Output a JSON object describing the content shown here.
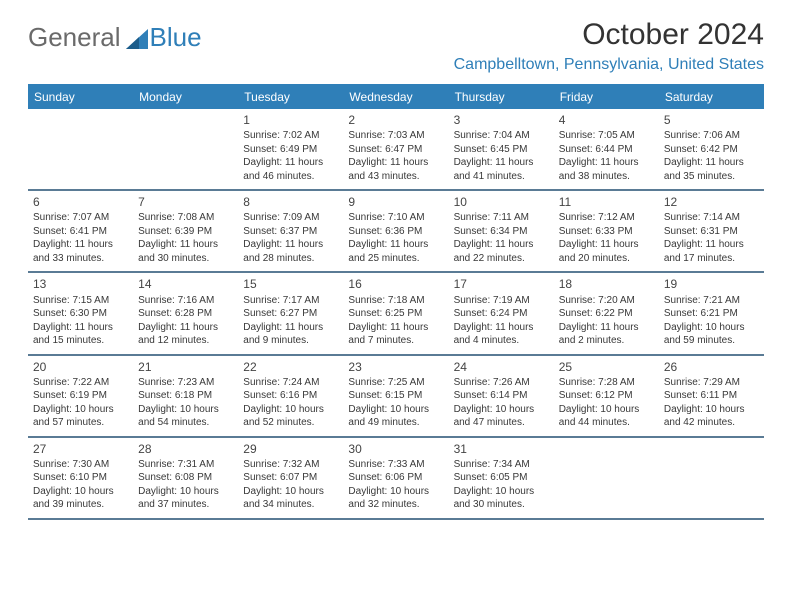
{
  "brand": {
    "part1": "General",
    "part2": "Blue"
  },
  "title": "October 2024",
  "location": "Campbelltown, Pennsylvania, United States",
  "colors": {
    "header_blue": "#2f7fb8",
    "text_dark": "#333333",
    "week_border": "#5a7b95"
  },
  "dayHeaders": [
    "Sunday",
    "Monday",
    "Tuesday",
    "Wednesday",
    "Thursday",
    "Friday",
    "Saturday"
  ],
  "weeks": [
    [
      null,
      null,
      {
        "n": "1",
        "sr": "Sunrise: 7:02 AM",
        "ss": "Sunset: 6:49 PM",
        "d1": "Daylight: 11 hours",
        "d2": "and 46 minutes."
      },
      {
        "n": "2",
        "sr": "Sunrise: 7:03 AM",
        "ss": "Sunset: 6:47 PM",
        "d1": "Daylight: 11 hours",
        "d2": "and 43 minutes."
      },
      {
        "n": "3",
        "sr": "Sunrise: 7:04 AM",
        "ss": "Sunset: 6:45 PM",
        "d1": "Daylight: 11 hours",
        "d2": "and 41 minutes."
      },
      {
        "n": "4",
        "sr": "Sunrise: 7:05 AM",
        "ss": "Sunset: 6:44 PM",
        "d1": "Daylight: 11 hours",
        "d2": "and 38 minutes."
      },
      {
        "n": "5",
        "sr": "Sunrise: 7:06 AM",
        "ss": "Sunset: 6:42 PM",
        "d1": "Daylight: 11 hours",
        "d2": "and 35 minutes."
      }
    ],
    [
      {
        "n": "6",
        "sr": "Sunrise: 7:07 AM",
        "ss": "Sunset: 6:41 PM",
        "d1": "Daylight: 11 hours",
        "d2": "and 33 minutes."
      },
      {
        "n": "7",
        "sr": "Sunrise: 7:08 AM",
        "ss": "Sunset: 6:39 PM",
        "d1": "Daylight: 11 hours",
        "d2": "and 30 minutes."
      },
      {
        "n": "8",
        "sr": "Sunrise: 7:09 AM",
        "ss": "Sunset: 6:37 PM",
        "d1": "Daylight: 11 hours",
        "d2": "and 28 minutes."
      },
      {
        "n": "9",
        "sr": "Sunrise: 7:10 AM",
        "ss": "Sunset: 6:36 PM",
        "d1": "Daylight: 11 hours",
        "d2": "and 25 minutes."
      },
      {
        "n": "10",
        "sr": "Sunrise: 7:11 AM",
        "ss": "Sunset: 6:34 PM",
        "d1": "Daylight: 11 hours",
        "d2": "and 22 minutes."
      },
      {
        "n": "11",
        "sr": "Sunrise: 7:12 AM",
        "ss": "Sunset: 6:33 PM",
        "d1": "Daylight: 11 hours",
        "d2": "and 20 minutes."
      },
      {
        "n": "12",
        "sr": "Sunrise: 7:14 AM",
        "ss": "Sunset: 6:31 PM",
        "d1": "Daylight: 11 hours",
        "d2": "and 17 minutes."
      }
    ],
    [
      {
        "n": "13",
        "sr": "Sunrise: 7:15 AM",
        "ss": "Sunset: 6:30 PM",
        "d1": "Daylight: 11 hours",
        "d2": "and 15 minutes."
      },
      {
        "n": "14",
        "sr": "Sunrise: 7:16 AM",
        "ss": "Sunset: 6:28 PM",
        "d1": "Daylight: 11 hours",
        "d2": "and 12 minutes."
      },
      {
        "n": "15",
        "sr": "Sunrise: 7:17 AM",
        "ss": "Sunset: 6:27 PM",
        "d1": "Daylight: 11 hours",
        "d2": "and 9 minutes."
      },
      {
        "n": "16",
        "sr": "Sunrise: 7:18 AM",
        "ss": "Sunset: 6:25 PM",
        "d1": "Daylight: 11 hours",
        "d2": "and 7 minutes."
      },
      {
        "n": "17",
        "sr": "Sunrise: 7:19 AM",
        "ss": "Sunset: 6:24 PM",
        "d1": "Daylight: 11 hours",
        "d2": "and 4 minutes."
      },
      {
        "n": "18",
        "sr": "Sunrise: 7:20 AM",
        "ss": "Sunset: 6:22 PM",
        "d1": "Daylight: 11 hours",
        "d2": "and 2 minutes."
      },
      {
        "n": "19",
        "sr": "Sunrise: 7:21 AM",
        "ss": "Sunset: 6:21 PM",
        "d1": "Daylight: 10 hours",
        "d2": "and 59 minutes."
      }
    ],
    [
      {
        "n": "20",
        "sr": "Sunrise: 7:22 AM",
        "ss": "Sunset: 6:19 PM",
        "d1": "Daylight: 10 hours",
        "d2": "and 57 minutes."
      },
      {
        "n": "21",
        "sr": "Sunrise: 7:23 AM",
        "ss": "Sunset: 6:18 PM",
        "d1": "Daylight: 10 hours",
        "d2": "and 54 minutes."
      },
      {
        "n": "22",
        "sr": "Sunrise: 7:24 AM",
        "ss": "Sunset: 6:16 PM",
        "d1": "Daylight: 10 hours",
        "d2": "and 52 minutes."
      },
      {
        "n": "23",
        "sr": "Sunrise: 7:25 AM",
        "ss": "Sunset: 6:15 PM",
        "d1": "Daylight: 10 hours",
        "d2": "and 49 minutes."
      },
      {
        "n": "24",
        "sr": "Sunrise: 7:26 AM",
        "ss": "Sunset: 6:14 PM",
        "d1": "Daylight: 10 hours",
        "d2": "and 47 minutes."
      },
      {
        "n": "25",
        "sr": "Sunrise: 7:28 AM",
        "ss": "Sunset: 6:12 PM",
        "d1": "Daylight: 10 hours",
        "d2": "and 44 minutes."
      },
      {
        "n": "26",
        "sr": "Sunrise: 7:29 AM",
        "ss": "Sunset: 6:11 PM",
        "d1": "Daylight: 10 hours",
        "d2": "and 42 minutes."
      }
    ],
    [
      {
        "n": "27",
        "sr": "Sunrise: 7:30 AM",
        "ss": "Sunset: 6:10 PM",
        "d1": "Daylight: 10 hours",
        "d2": "and 39 minutes."
      },
      {
        "n": "28",
        "sr": "Sunrise: 7:31 AM",
        "ss": "Sunset: 6:08 PM",
        "d1": "Daylight: 10 hours",
        "d2": "and 37 minutes."
      },
      {
        "n": "29",
        "sr": "Sunrise: 7:32 AM",
        "ss": "Sunset: 6:07 PM",
        "d1": "Daylight: 10 hours",
        "d2": "and 34 minutes."
      },
      {
        "n": "30",
        "sr": "Sunrise: 7:33 AM",
        "ss": "Sunset: 6:06 PM",
        "d1": "Daylight: 10 hours",
        "d2": "and 32 minutes."
      },
      {
        "n": "31",
        "sr": "Sunrise: 7:34 AM",
        "ss": "Sunset: 6:05 PM",
        "d1": "Daylight: 10 hours",
        "d2": "and 30 minutes."
      },
      null,
      null
    ]
  ]
}
